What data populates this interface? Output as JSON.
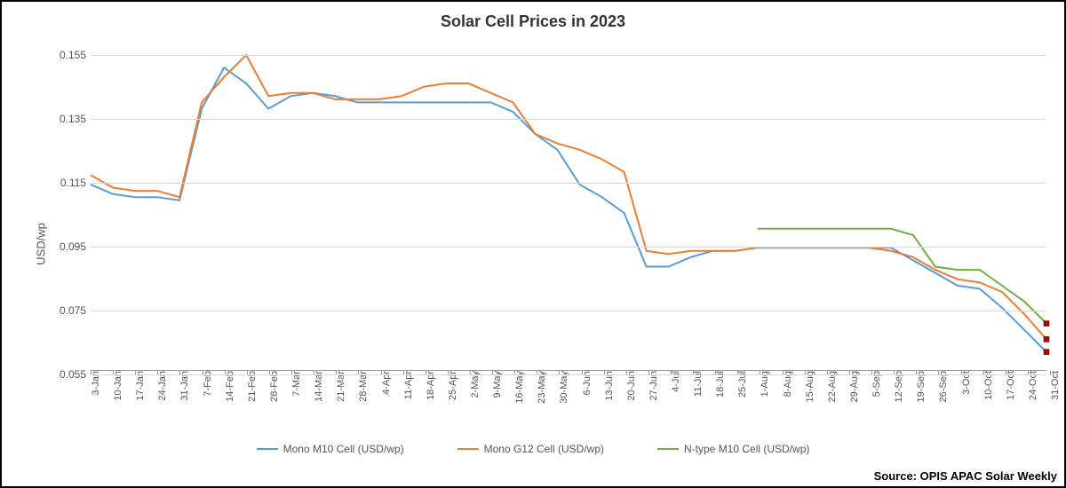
{
  "chart": {
    "type": "line",
    "title": "Solar Cell Prices in 2023",
    "ylabel": "USD/wp",
    "title_fontsize": 18,
    "label_fontsize": 13,
    "tick_fontsize": 12,
    "background_color": "#ffffff",
    "grid_color": "#d9d9d9",
    "border_color": "#000000",
    "ylim": [
      0.055,
      0.155
    ],
    "yticks": [
      0.055,
      0.075,
      0.095,
      0.115,
      0.135,
      0.155
    ],
    "x_labels": [
      "3-Jan",
      "10-Jan",
      "17-Jan",
      "24-Jan",
      "31-Jan",
      "7-Feb",
      "14-Feb",
      "21-Feb",
      "28-Feb",
      "7-Mar",
      "14-Mar",
      "21-Mar",
      "28-Mar",
      "4-Apr",
      "11-Apr",
      "18-Apr",
      "25-Apr",
      "2-May",
      "9-May",
      "16-May",
      "23-May",
      "30-May",
      "6-Jun",
      "13-Jun",
      "20-Jun",
      "27-Jun",
      "4-Jul",
      "11-Jul",
      "18-Jul",
      "25-Jul",
      "1-Aug",
      "8-Aug",
      "15-Aug",
      "22-Aug",
      "29-Aug",
      "5-Sep",
      "12-Sep",
      "19-Sep",
      "26-Sep",
      "3-Oct",
      "10-Oct",
      "17-Oct",
      "24-Oct",
      "31-Oct"
    ],
    "series": [
      {
        "name": "Mono M10 Cell (USD/wp)",
        "color": "#5b9bd5",
        "line_width": 2,
        "values": [
          0.114,
          0.111,
          0.11,
          0.11,
          0.109,
          0.138,
          0.151,
          0.146,
          0.138,
          0.142,
          0.143,
          0.142,
          0.14,
          0.14,
          0.14,
          0.14,
          0.14,
          0.14,
          0.14,
          0.137,
          0.13,
          0.125,
          0.114,
          0.11,
          0.105,
          0.088,
          0.088,
          0.091,
          0.093,
          0.093,
          0.094,
          0.094,
          0.094,
          0.094,
          0.094,
          0.094,
          0.094,
          0.09,
          0.086,
          0.082,
          0.081,
          0.075,
          0.068,
          0.061
        ]
      },
      {
        "name": "Mono G12 Cell (USD/wp)",
        "color": "#ed7d31",
        "line_width": 2,
        "values": [
          0.117,
          0.113,
          0.112,
          0.112,
          0.11,
          0.14,
          0.148,
          0.155,
          0.142,
          0.143,
          0.143,
          0.141,
          0.141,
          0.141,
          0.142,
          0.145,
          0.146,
          0.146,
          0.143,
          0.14,
          0.13,
          0.127,
          0.125,
          0.122,
          0.118,
          0.093,
          0.092,
          0.093,
          0.093,
          0.093,
          0.094,
          0.094,
          0.094,
          0.094,
          0.094,
          0.094,
          0.093,
          0.091,
          0.087,
          0.084,
          0.083,
          0.08,
          0.073,
          0.065
        ]
      },
      {
        "name": "N-type M10 Cell (USD/wp)",
        "color": "#70ad47",
        "line_width": 2,
        "values": [
          null,
          null,
          null,
          null,
          null,
          null,
          null,
          null,
          null,
          null,
          null,
          null,
          null,
          null,
          null,
          null,
          null,
          null,
          null,
          null,
          null,
          null,
          null,
          null,
          null,
          null,
          null,
          null,
          null,
          null,
          0.1,
          0.1,
          0.1,
          0.1,
          0.1,
          0.1,
          0.1,
          0.098,
          0.088,
          0.087,
          0.087,
          0.082,
          0.077,
          0.07
        ]
      }
    ],
    "end_markers": {
      "color": "#c00000",
      "size": 6,
      "enabled": true
    },
    "legend_position": "bottom",
    "source": "Source: OPIS APAC Solar Weekly"
  }
}
